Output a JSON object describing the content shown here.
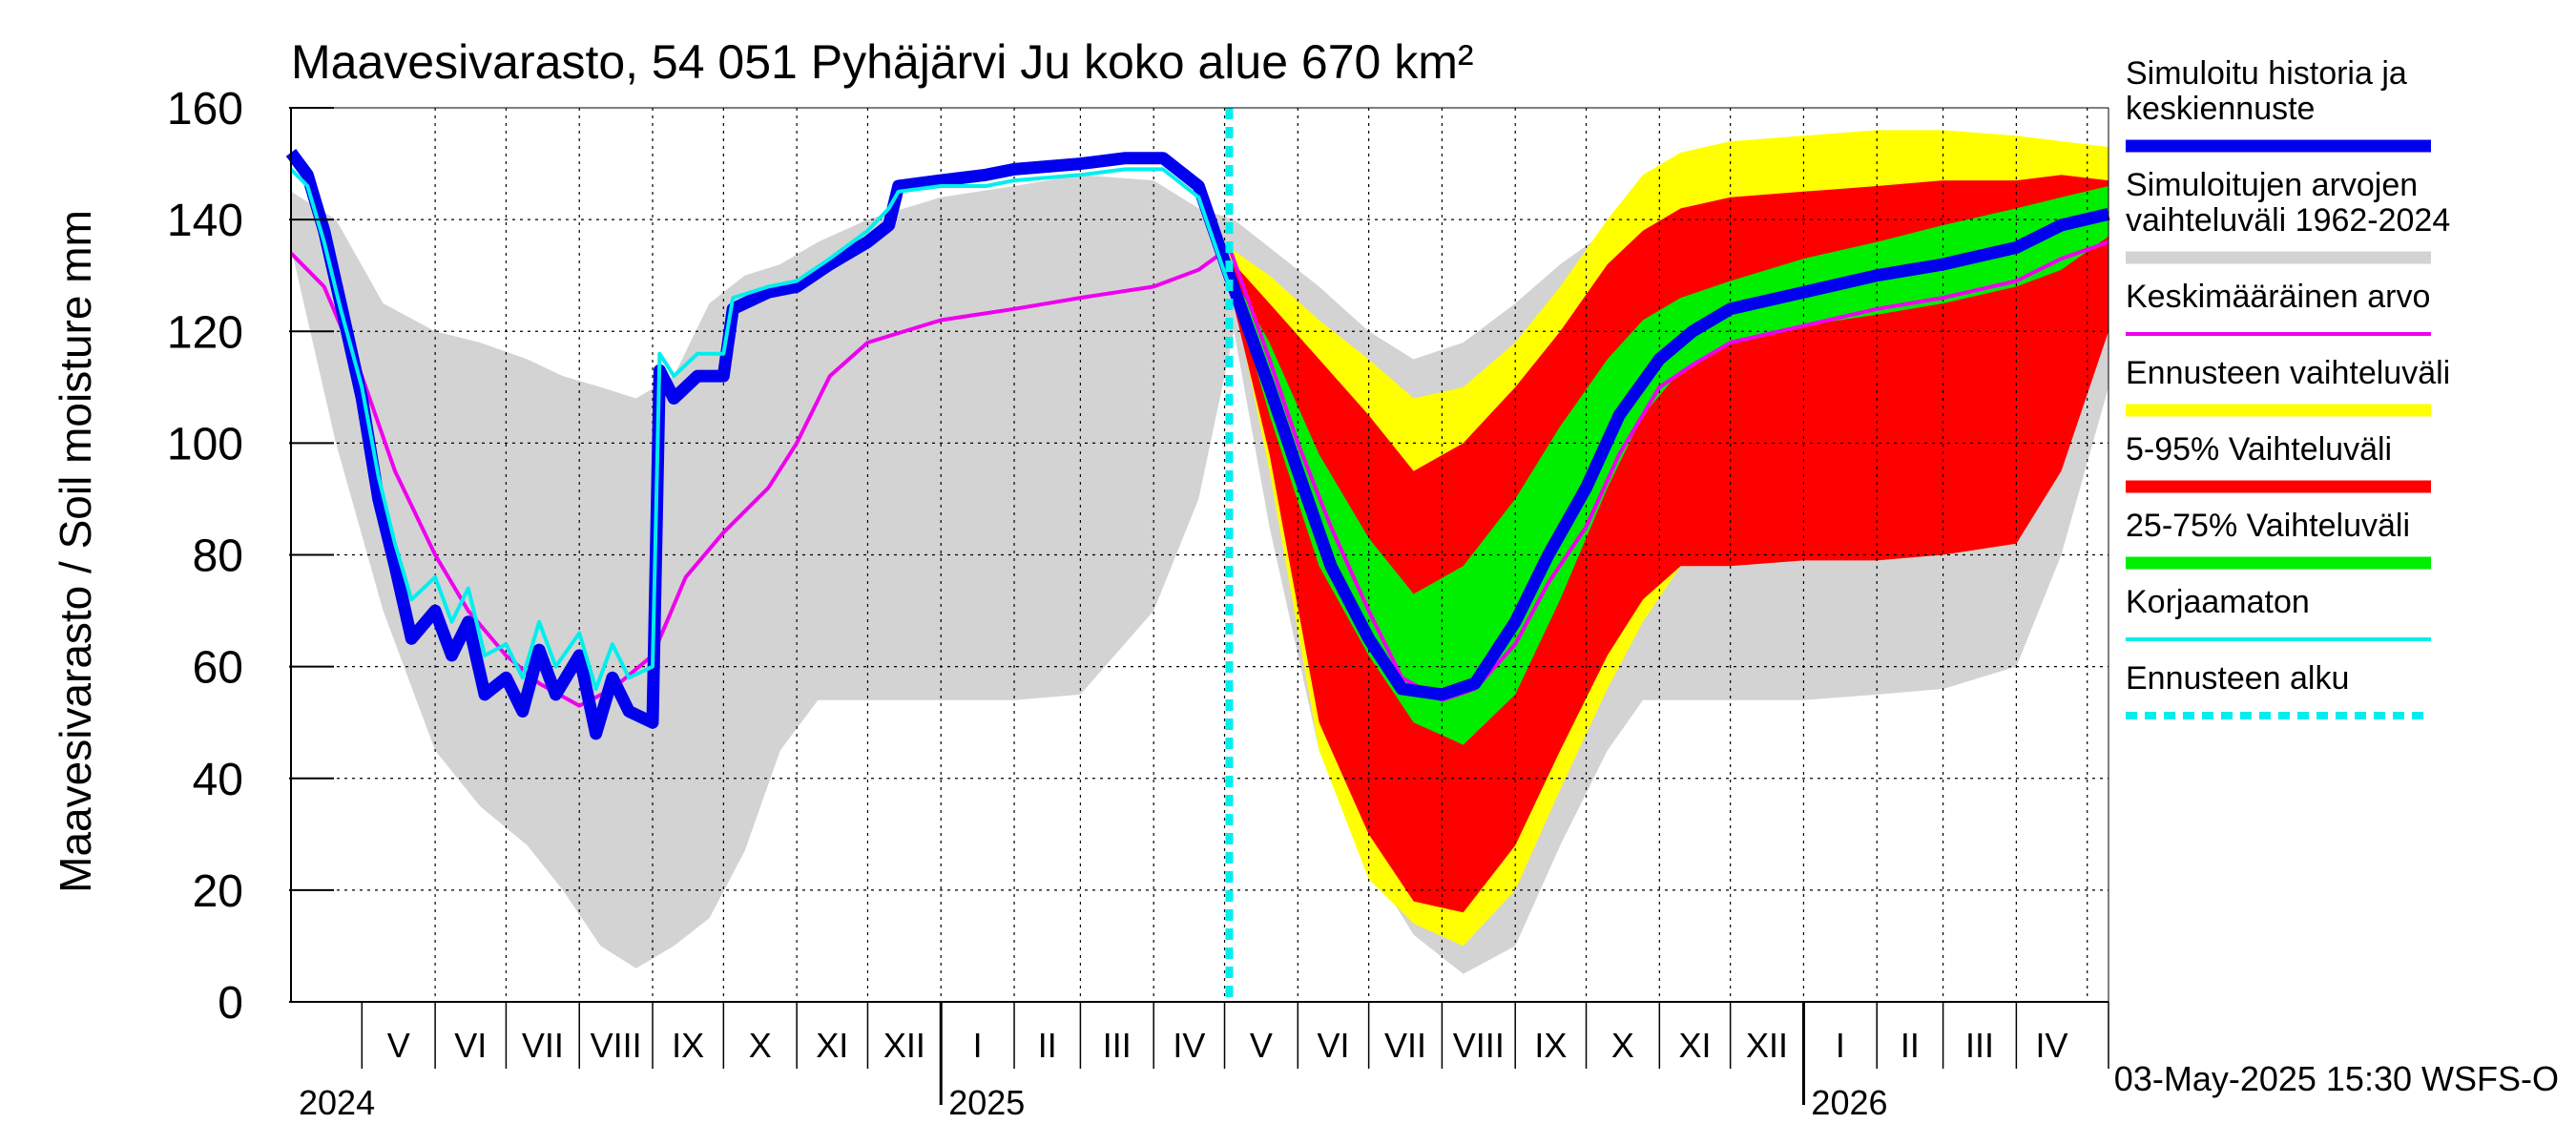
{
  "chart_data": {
    "type": "area",
    "title": "Maavesivarasto, 54 051 Pyhäjärvi Ju koko alue 670 km²",
    "ylabel": "Maavesivarasto / Soil moisture   mm",
    "xlabel": "",
    "ylim": [
      0,
      160
    ],
    "yticks": [
      0,
      20,
      40,
      60,
      80,
      100,
      120,
      140,
      160
    ],
    "xlim": [
      "2024-04-01",
      "2026-05-10"
    ],
    "months": [
      {
        "label": "V",
        "start": "2024-05-01",
        "end": "2024-06-01"
      },
      {
        "label": "VI",
        "start": "2024-06-01",
        "end": "2024-07-01"
      },
      {
        "label": "VII",
        "start": "2024-07-01",
        "end": "2024-08-01"
      },
      {
        "label": "VIII",
        "start": "2024-08-01",
        "end": "2024-09-01"
      },
      {
        "label": "IX",
        "start": "2024-09-01",
        "end": "2024-10-01"
      },
      {
        "label": "X",
        "start": "2024-10-01",
        "end": "2024-11-01"
      },
      {
        "label": "XI",
        "start": "2024-11-01",
        "end": "2024-12-01"
      },
      {
        "label": "XII",
        "start": "2024-12-01",
        "end": "2025-01-01"
      },
      {
        "label": "I",
        "start": "2025-01-01",
        "end": "2025-02-01"
      },
      {
        "label": "II",
        "start": "2025-02-01",
        "end": "2025-03-01"
      },
      {
        "label": "III",
        "start": "2025-03-01",
        "end": "2025-04-01"
      },
      {
        "label": "IV",
        "start": "2025-04-01",
        "end": "2025-05-01"
      },
      {
        "label": "V",
        "start": "2025-05-01",
        "end": "2025-06-01"
      },
      {
        "label": "VI",
        "start": "2025-06-01",
        "end": "2025-07-01"
      },
      {
        "label": "VII",
        "start": "2025-07-01",
        "end": "2025-08-01"
      },
      {
        "label": "VIII",
        "start": "2025-08-01",
        "end": "2025-09-01"
      },
      {
        "label": "IX",
        "start": "2025-09-01",
        "end": "2025-10-01"
      },
      {
        "label": "X",
        "start": "2025-10-01",
        "end": "2025-11-01"
      },
      {
        "label": "XI",
        "start": "2025-11-01",
        "end": "2025-12-01"
      },
      {
        "label": "XII",
        "start": "2025-12-01",
        "end": "2026-01-01"
      },
      {
        "label": "I",
        "start": "2026-01-01",
        "end": "2026-02-01"
      },
      {
        "label": "II",
        "start": "2026-02-01",
        "end": "2026-03-01"
      },
      {
        "label": "III",
        "start": "2026-03-01",
        "end": "2026-04-01"
      },
      {
        "label": "IV",
        "start": "2026-04-01",
        "end": "2026-05-01"
      }
    ],
    "years": [
      {
        "label": "2024",
        "at": "2024-04-01"
      },
      {
        "label": "2025",
        "at": "2025-01-01"
      },
      {
        "label": "2026",
        "at": "2026-01-01"
      }
    ],
    "forecast_start": "2025-05-03",
    "timestamp": "03-May-2025 15:30 WSFS-O",
    "colors": {
      "history": "#0000ee",
      "hist_range": "#d3d3d3",
      "mean": "#ee00ee",
      "forecast_range": "#ffff00",
      "p5_95": "#ff0000",
      "p25_75": "#00ee00",
      "uncorrected": "#00eeee",
      "forecast_start": "#00eeee"
    },
    "legend": [
      {
        "key": "history",
        "label": [
          "Simuloitu historia ja",
          "keskiennuste"
        ],
        "style": "thick"
      },
      {
        "key": "hist_range",
        "label": [
          "Simuloitujen arvojen",
          "vaihteluväli 1962-2024"
        ],
        "style": "thick"
      },
      {
        "key": "mean",
        "label": [
          "Keskimääräinen arvo"
        ],
        "style": "thin"
      },
      {
        "key": "forecast_range",
        "label": [
          "Ennusteen vaihteluväli"
        ],
        "style": "thick"
      },
      {
        "key": "p5_95",
        "label": [
          "5-95% Vaihteluväli"
        ],
        "style": "thick"
      },
      {
        "key": "p25_75",
        "label": [
          "25-75% Vaihteluväli"
        ],
        "style": "thick"
      },
      {
        "key": "uncorrected",
        "label": [
          "Korjaamaton"
        ],
        "style": "thin"
      },
      {
        "key": "forecast_start",
        "label": [
          "Ennusteen alku"
        ],
        "style": "dashed"
      }
    ],
    "series": {
      "hist_range": [
        [
          "2024-04-01",
          145,
          135
        ],
        [
          "2024-04-20",
          140,
          100
        ],
        [
          "2024-05-10",
          125,
          70
        ],
        [
          "2024-06-01",
          120,
          45
        ],
        [
          "2024-06-20",
          118,
          35
        ],
        [
          "2024-07-10",
          115,
          28
        ],
        [
          "2024-07-25",
          112,
          20
        ],
        [
          "2024-08-10",
          110,
          10
        ],
        [
          "2024-08-25",
          108,
          6
        ],
        [
          "2024-09-10",
          112,
          10
        ],
        [
          "2024-09-25",
          125,
          15
        ],
        [
          "2024-10-10",
          130,
          27
        ],
        [
          "2024-10-25",
          132,
          45
        ],
        [
          "2024-11-10",
          136,
          54
        ],
        [
          "2024-12-01",
          140,
          54
        ],
        [
          "2025-01-01",
          144,
          54
        ],
        [
          "2025-02-01",
          146,
          54
        ],
        [
          "2025-03-01",
          148,
          55
        ],
        [
          "2025-04-01",
          147,
          70
        ],
        [
          "2025-04-20",
          142,
          90
        ],
        [
          "2025-05-05",
          140,
          120
        ],
        [
          "2025-05-20",
          135,
          85
        ],
        [
          "2025-06-10",
          128,
          45
        ],
        [
          "2025-07-01",
          120,
          25
        ],
        [
          "2025-07-20",
          115,
          12
        ],
        [
          "2025-08-10",
          118,
          5
        ],
        [
          "2025-09-01",
          125,
          10
        ],
        [
          "2025-09-20",
          132,
          28
        ],
        [
          "2025-10-10",
          138,
          45
        ],
        [
          "2025-10-25",
          141,
          54
        ],
        [
          "2025-11-10",
          144,
          54
        ],
        [
          "2025-12-01",
          145,
          54
        ],
        [
          "2026-01-01",
          146,
          54
        ],
        [
          "2026-02-01",
          147,
          55
        ],
        [
          "2026-03-01",
          148,
          56
        ],
        [
          "2026-04-01",
          148,
          60
        ],
        [
          "2026-04-20",
          147,
          80
        ],
        [
          "2026-05-10",
          146,
          110
        ]
      ],
      "forecast_range": [
        [
          "2025-05-03",
          135,
          130
        ],
        [
          "2025-05-20",
          130,
          95
        ],
        [
          "2025-06-10",
          122,
          45
        ],
        [
          "2025-07-01",
          115,
          22
        ],
        [
          "2025-07-20",
          108,
          14
        ],
        [
          "2025-08-10",
          110,
          10
        ],
        [
          "2025-09-01",
          118,
          20
        ],
        [
          "2025-09-20",
          128,
          38
        ],
        [
          "2025-10-10",
          140,
          56
        ],
        [
          "2025-10-25",
          148,
          68
        ],
        [
          "2025-11-10",
          152,
          78
        ],
        [
          "2025-12-01",
          154,
          79
        ],
        [
          "2026-01-01",
          155,
          79
        ],
        [
          "2026-02-01",
          156,
          80
        ],
        [
          "2026-03-01",
          156,
          80
        ],
        [
          "2026-04-01",
          155,
          82
        ],
        [
          "2026-04-20",
          154,
          100
        ],
        [
          "2026-05-10",
          153,
          122
        ]
      ],
      "p5_95": [
        [
          "2025-05-03",
          133,
          128
        ],
        [
          "2025-05-20",
          125,
          98
        ],
        [
          "2025-06-10",
          115,
          50
        ],
        [
          "2025-07-01",
          105,
          30
        ],
        [
          "2025-07-20",
          95,
          18
        ],
        [
          "2025-08-10",
          100,
          16
        ],
        [
          "2025-09-01",
          110,
          28
        ],
        [
          "2025-09-20",
          120,
          45
        ],
        [
          "2025-10-10",
          132,
          62
        ],
        [
          "2025-10-25",
          138,
          72
        ],
        [
          "2025-11-10",
          142,
          78
        ],
        [
          "2025-12-01",
          144,
          78
        ],
        [
          "2026-01-01",
          145,
          79
        ],
        [
          "2026-02-01",
          146,
          79
        ],
        [
          "2026-03-01",
          147,
          80
        ],
        [
          "2026-04-01",
          147,
          82
        ],
        [
          "2026-04-20",
          148,
          95
        ],
        [
          "2026-05-10",
          147,
          120
        ]
      ],
      "p25_75": [
        [
          "2025-05-03",
          131,
          130
        ],
        [
          "2025-05-20",
          118,
          105
        ],
        [
          "2025-06-10",
          98,
          78
        ],
        [
          "2025-07-01",
          83,
          62
        ],
        [
          "2025-07-20",
          73,
          50
        ],
        [
          "2025-08-10",
          78,
          46
        ],
        [
          "2025-09-01",
          90,
          55
        ],
        [
          "2025-09-20",
          103,
          72
        ],
        [
          "2025-10-10",
          115,
          92
        ],
        [
          "2025-10-25",
          122,
          105
        ],
        [
          "2025-11-10",
          126,
          113
        ],
        [
          "2025-12-01",
          129,
          118
        ],
        [
          "2026-01-01",
          133,
          121
        ],
        [
          "2026-02-01",
          136,
          123
        ],
        [
          "2026-03-01",
          139,
          125
        ],
        [
          "2026-04-01",
          142,
          128
        ],
        [
          "2026-04-20",
          144,
          131
        ],
        [
          "2026-05-10",
          146,
          137
        ]
      ],
      "history": [
        [
          "2024-04-01",
          152
        ],
        [
          "2024-04-08",
          148
        ],
        [
          "2024-04-15",
          138
        ],
        [
          "2024-04-22",
          125
        ],
        [
          "2024-05-01",
          108
        ],
        [
          "2024-05-08",
          90
        ],
        [
          "2024-05-15",
          78
        ],
        [
          "2024-05-22",
          65
        ],
        [
          "2024-06-01",
          70
        ],
        [
          "2024-06-08",
          62
        ],
        [
          "2024-06-15",
          68
        ],
        [
          "2024-06-22",
          55
        ],
        [
          "2024-07-01",
          58
        ],
        [
          "2024-07-08",
          52
        ],
        [
          "2024-07-15",
          63
        ],
        [
          "2024-07-22",
          55
        ],
        [
          "2024-08-01",
          62
        ],
        [
          "2024-08-08",
          48
        ],
        [
          "2024-08-15",
          58
        ],
        [
          "2024-08-22",
          52
        ],
        [
          "2024-09-01",
          50
        ],
        [
          "2024-09-04",
          113
        ],
        [
          "2024-09-10",
          108
        ],
        [
          "2024-09-20",
          112
        ],
        [
          "2024-10-01",
          112
        ],
        [
          "2024-10-05",
          124
        ],
        [
          "2024-10-20",
          127
        ],
        [
          "2024-11-01",
          128
        ],
        [
          "2024-11-15",
          132
        ],
        [
          "2024-12-01",
          136
        ],
        [
          "2024-12-10",
          139
        ],
        [
          "2024-12-14",
          146
        ],
        [
          "2025-01-01",
          147
        ],
        [
          "2025-01-20",
          148
        ],
        [
          "2025-02-01",
          149
        ],
        [
          "2025-03-01",
          150
        ],
        [
          "2025-03-20",
          151
        ],
        [
          "2025-04-05",
          151
        ],
        [
          "2025-04-20",
          146
        ],
        [
          "2025-05-03",
          130
        ],
        [
          "2025-05-20",
          110
        ],
        [
          "2025-06-01",
          95
        ],
        [
          "2025-06-15",
          78
        ],
        [
          "2025-07-01",
          65
        ],
        [
          "2025-07-15",
          56
        ],
        [
          "2025-08-01",
          55
        ],
        [
          "2025-08-15",
          57
        ],
        [
          "2025-09-01",
          68
        ],
        [
          "2025-09-15",
          80
        ],
        [
          "2025-10-01",
          92
        ],
        [
          "2025-10-15",
          105
        ],
        [
          "2025-11-01",
          115
        ],
        [
          "2025-11-15",
          120
        ],
        [
          "2025-12-01",
          124
        ],
        [
          "2026-01-01",
          127
        ],
        [
          "2026-02-01",
          130
        ],
        [
          "2026-03-01",
          132
        ],
        [
          "2026-04-01",
          135
        ],
        [
          "2026-04-20",
          139
        ],
        [
          "2026-05-10",
          141
        ]
      ],
      "uncorrected": [
        [
          "2024-04-01",
          149
        ],
        [
          "2024-04-08",
          146
        ],
        [
          "2024-04-15",
          136
        ],
        [
          "2024-04-22",
          124
        ],
        [
          "2024-05-01",
          110
        ],
        [
          "2024-05-08",
          94
        ],
        [
          "2024-05-15",
          82
        ],
        [
          "2024-05-22",
          72
        ],
        [
          "2024-06-01",
          76
        ],
        [
          "2024-06-08",
          68
        ],
        [
          "2024-06-15",
          74
        ],
        [
          "2024-06-22",
          62
        ],
        [
          "2024-07-01",
          64
        ],
        [
          "2024-07-08",
          58
        ],
        [
          "2024-07-15",
          68
        ],
        [
          "2024-07-22",
          60
        ],
        [
          "2024-08-01",
          66
        ],
        [
          "2024-08-08",
          56
        ],
        [
          "2024-08-15",
          64
        ],
        [
          "2024-08-22",
          58
        ],
        [
          "2024-09-01",
          60
        ],
        [
          "2024-09-04",
          116
        ],
        [
          "2024-09-10",
          112
        ],
        [
          "2024-09-20",
          116
        ],
        [
          "2024-10-01",
          116
        ],
        [
          "2024-10-05",
          126
        ],
        [
          "2024-10-20",
          128
        ],
        [
          "2024-11-01",
          129
        ],
        [
          "2024-11-15",
          133
        ],
        [
          "2024-12-01",
          138
        ],
        [
          "2024-12-10",
          142
        ],
        [
          "2024-12-14",
          145
        ],
        [
          "2025-01-01",
          146
        ],
        [
          "2025-01-20",
          146
        ],
        [
          "2025-02-01",
          147
        ],
        [
          "2025-03-01",
          148
        ],
        [
          "2025-03-20",
          149
        ],
        [
          "2025-04-05",
          149
        ],
        [
          "2025-04-20",
          144
        ],
        [
          "2025-05-03",
          128
        ]
      ],
      "mean": [
        [
          "2024-04-01",
          134
        ],
        [
          "2024-04-15",
          128
        ],
        [
          "2024-05-01",
          112
        ],
        [
          "2024-05-15",
          95
        ],
        [
          "2024-06-01",
          80
        ],
        [
          "2024-06-15",
          70
        ],
        [
          "2024-07-01",
          62
        ],
        [
          "2024-07-15",
          57
        ],
        [
          "2024-08-01",
          53
        ],
        [
          "2024-08-15",
          56
        ],
        [
          "2024-09-01",
          62
        ],
        [
          "2024-09-15",
          76
        ],
        [
          "2024-10-01",
          84
        ],
        [
          "2024-10-20",
          92
        ],
        [
          "2024-11-01",
          100
        ],
        [
          "2024-11-15",
          112
        ],
        [
          "2024-12-01",
          118
        ],
        [
          "2025-01-01",
          122
        ],
        [
          "2025-02-01",
          124
        ],
        [
          "2025-03-01",
          126
        ],
        [
          "2025-04-01",
          128
        ],
        [
          "2025-04-20",
          131
        ],
        [
          "2025-05-03",
          135
        ],
        [
          "2025-05-20",
          115
        ],
        [
          "2025-06-01",
          100
        ],
        [
          "2025-06-15",
          85
        ],
        [
          "2025-07-01",
          70
        ],
        [
          "2025-07-15",
          58
        ],
        [
          "2025-08-01",
          54
        ],
        [
          "2025-08-15",
          56
        ],
        [
          "2025-09-01",
          64
        ],
        [
          "2025-09-15",
          75
        ],
        [
          "2025-10-01",
          85
        ],
        [
          "2025-10-15",
          98
        ],
        [
          "2025-11-01",
          110
        ],
        [
          "2025-11-15",
          114
        ],
        [
          "2025-12-01",
          118
        ],
        [
          "2026-01-01",
          121
        ],
        [
          "2026-02-01",
          124
        ],
        [
          "2026-03-01",
          126
        ],
        [
          "2026-04-01",
          129
        ],
        [
          "2026-04-20",
          133
        ],
        [
          "2026-05-10",
          136
        ]
      ]
    }
  }
}
